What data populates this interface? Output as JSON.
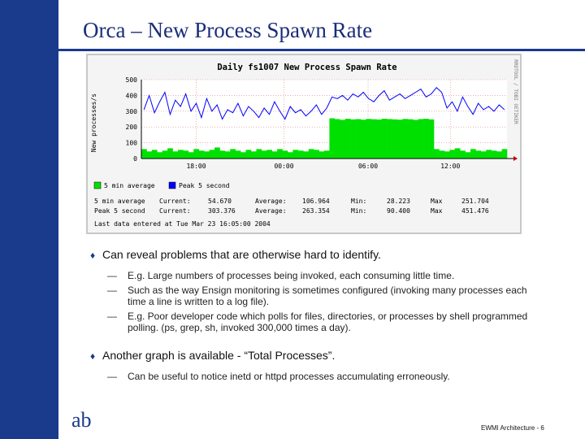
{
  "slide": {
    "title": "Orca – New Process Spawn Rate",
    "footer": "EWMI Architecture - 6",
    "logo_text": "ab",
    "accent_color": "#1a3a8c"
  },
  "graph": {
    "title": "Daily fs1007 New Process Spawn Rate",
    "side_label": "RRDTOOL / TOBI OETIKER",
    "legend": [
      {
        "label": "5 min average",
        "color": "#00e000"
      },
      {
        "label": "Peak 5 second",
        "color": "#0000ff"
      }
    ],
    "stats": [
      {
        "name": "5 min average",
        "current_label": "Current:",
        "current": "54.670",
        "average_label": "Average:",
        "average": "106.964",
        "min_label": "Min:",
        "min": "28.223",
        "max_label": "Max",
        "max": "251.704"
      },
      {
        "name": "Peak 5 second",
        "current_label": "Current:",
        "current": "303.376",
        "average_label": "Average:",
        "average": "263.354",
        "min_label": "Min:",
        "min": "90.400",
        "max_label": "Max",
        "max": "451.476"
      }
    ],
    "last_entered": "Last data entered at Tue Mar 23 16:05:00 2004"
  },
  "chart_data": {
    "type": "area",
    "title": "Daily fs1007 New Process Spawn Rate",
    "xlabel": "",
    "ylabel": "New processes/s",
    "x_ticks": [
      "18:00",
      "00:00",
      "06:00",
      "12:00"
    ],
    "y_ticks": [
      0,
      100,
      200,
      300,
      400,
      500
    ],
    "ylim": [
      0,
      500
    ],
    "grid": true,
    "legend_position": "bottom-left",
    "series": [
      {
        "name": "5 min average",
        "color": "#00e000",
        "values": [
          60,
          45,
          55,
          40,
          50,
          65,
          45,
          55,
          50,
          40,
          60,
          50,
          45,
          55,
          70,
          50,
          45,
          60,
          50,
          40,
          55,
          45,
          60,
          50,
          55,
          45,
          60,
          50,
          40,
          55,
          50,
          45,
          60,
          55,
          45,
          50,
          255,
          250,
          245,
          252,
          248,
          250,
          246,
          251,
          249,
          247,
          252,
          250,
          248,
          246,
          251,
          249,
          245,
          250,
          252,
          248,
          60,
          50,
          45,
          55,
          65,
          50,
          40,
          60,
          50,
          45,
          55,
          50,
          45,
          60
        ]
      },
      {
        "name": "Peak 5 second",
        "color": "#0000ff",
        "values": [
          310,
          400,
          290,
          360,
          420,
          280,
          370,
          330,
          410,
          300,
          350,
          260,
          380,
          300,
          340,
          250,
          310,
          290,
          350,
          270,
          330,
          300,
          260,
          320,
          280,
          360,
          300,
          250,
          330,
          290,
          310,
          270,
          300,
          340,
          280,
          320,
          390,
          380,
          400,
          370,
          410,
          390,
          420,
          380,
          360,
          400,
          430,
          370,
          390,
          410,
          380,
          400,
          420,
          440,
          390,
          410,
          450,
          420,
          320,
          360,
          300,
          390,
          330,
          280,
          350,
          310,
          330,
          300,
          340,
          310
        ]
      }
    ]
  }
}
